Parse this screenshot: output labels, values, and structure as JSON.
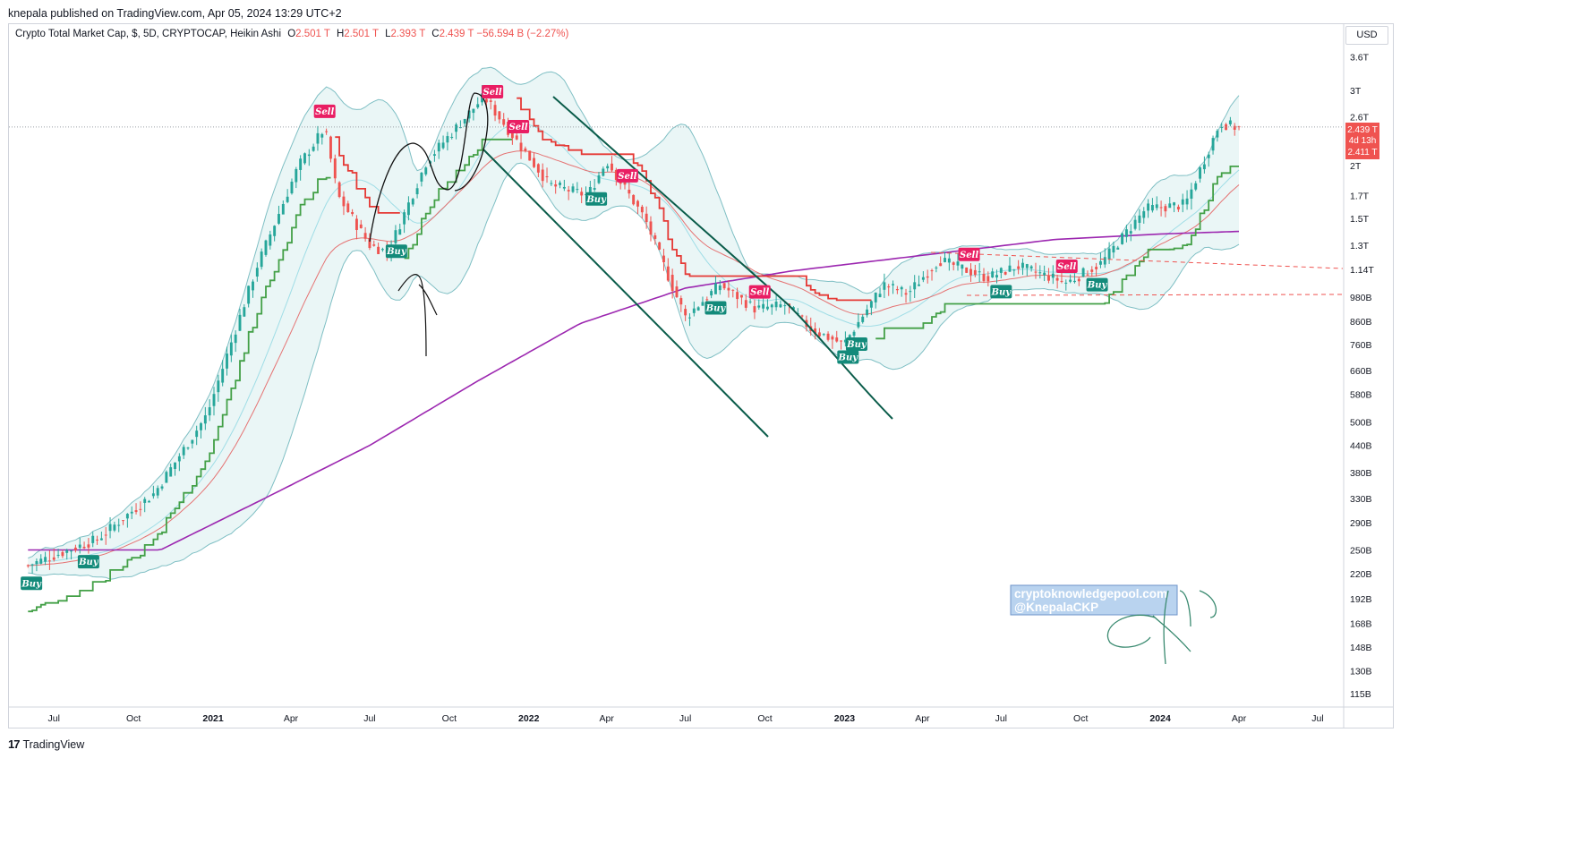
{
  "header": {
    "published_by": "knepala published on TradingView.com, Apr 05, 2024 13:29 UTC+2"
  },
  "legend": {
    "symbol": "Crypto Total Market Cap, $, 5D, CRYPTOCAP, Heikin Ashi",
    "open_key": "O",
    "open": "2.501 T",
    "high_key": "H",
    "high": "2.501 T",
    "low_key": "L",
    "low": "2.393 T",
    "close_key": "C",
    "close": "2.439 T",
    "change": "−56.594 B (−2.27%)"
  },
  "price_axis": {
    "currency": "USD",
    "current_price": "2.439 T",
    "countdown": "4d 13h",
    "prev_close": "2.411 T"
  },
  "watermark": {
    "line1": "cryptoknowledgepool.com",
    "line2": "@KnepalaCKP",
    "signature": "CKP"
  },
  "footer": {
    "brand": "TradingView"
  },
  "colors": {
    "up": "#26a69a",
    "down": "#ef5350",
    "bb_fill": "#e6f4f4",
    "bb_edge": "#7fbfc4",
    "ma200": "#9c27b0",
    "supertrend_up": "#43a047",
    "supertrend_down": "#e53935",
    "sell_label": "#e91e63",
    "buy_label": "#138a7a",
    "trendline": "#0a5c4a"
  },
  "chart_data": {
    "type": "candlestick",
    "title": "Crypto Total Market Cap, $, 5D, CRYPTOCAP, Heikin Ashi",
    "y_scale": "log",
    "y_unit": "USD",
    "y_ticks": [
      "3.6T",
      "3T",
      "2.6T",
      "2T",
      "1.7T",
      "1.5T",
      "1.3T",
      "1.14T",
      "980B",
      "860B",
      "760B",
      "660B",
      "580B",
      "500B",
      "440B",
      "380B",
      "330B",
      "290B",
      "250B",
      "220B",
      "192B",
      "168B",
      "148B",
      "130B",
      "115B"
    ],
    "x_ticks": [
      {
        "label": "Jul",
        "bold": false
      },
      {
        "label": "Oct",
        "bold": false
      },
      {
        "label": "2021",
        "bold": true
      },
      {
        "label": "Apr",
        "bold": false
      },
      {
        "label": "Jul",
        "bold": false
      },
      {
        "label": "Oct",
        "bold": false
      },
      {
        "label": "2022",
        "bold": true
      },
      {
        "label": "Apr",
        "bold": false
      },
      {
        "label": "Jul",
        "bold": false
      },
      {
        "label": "Oct",
        "bold": false
      },
      {
        "label": "2023",
        "bold": true
      },
      {
        "label": "Apr",
        "bold": false
      },
      {
        "label": "Jul",
        "bold": false
      },
      {
        "label": "Oct",
        "bold": false
      },
      {
        "label": "2024",
        "bold": true
      },
      {
        "label": "Apr",
        "bold": false
      },
      {
        "label": "Jul",
        "bold": false
      }
    ],
    "price_path": [
      [
        "2020-06-01",
        230
      ],
      [
        "2020-08-20",
        265
      ],
      [
        "2020-10-25",
        340
      ],
      [
        "2020-12-25",
        520
      ],
      [
        "2021-02-20",
        1150
      ],
      [
        "2021-04-10",
        2000
      ],
      [
        "2021-05-10",
        2450
      ],
      [
        "2021-05-25",
        1700
      ],
      [
        "2021-07-01",
        1300
      ],
      [
        "2021-07-22",
        1250
      ],
      [
        "2021-09-05",
        2050
      ],
      [
        "2021-10-20",
        2600
      ],
      [
        "2021-11-10",
        2900
      ],
      [
        "2021-12-10",
        2400
      ],
      [
        "2022-01-25",
        1800
      ],
      [
        "2022-03-10",
        1700
      ],
      [
        "2022-04-01",
        2050
      ],
      [
        "2022-05-15",
        1500
      ],
      [
        "2022-06-15",
        1050
      ],
      [
        "2022-07-01",
        880
      ],
      [
        "2022-08-10",
        1050
      ],
      [
        "2022-09-20",
        920
      ],
      [
        "2022-10-25",
        940
      ],
      [
        "2022-11-25",
        820
      ],
      [
        "2022-12-31",
        760
      ],
      [
        "2023-02-15",
        1050
      ],
      [
        "2023-03-15",
        1000
      ],
      [
        "2023-04-20",
        1200
      ],
      [
        "2023-06-15",
        1090
      ],
      [
        "2023-07-20",
        1160
      ],
      [
        "2023-09-15",
        1060
      ],
      [
        "2023-10-25",
        1180
      ],
      [
        "2023-12-15",
        1580
      ],
      [
        "2024-01-30",
        1620
      ],
      [
        "2024-03-10",
        2520
      ],
      [
        "2024-04-03",
        2439
      ]
    ],
    "ma200_path": [
      [
        "2020-06-01",
        250
      ],
      [
        "2020-11-01",
        250
      ],
      [
        "2021-03-01",
        330
      ],
      [
        "2021-07-01",
        440
      ],
      [
        "2021-11-01",
        620
      ],
      [
        "2022-03-01",
        850
      ],
      [
        "2022-07-01",
        1030
      ],
      [
        "2022-11-01",
        1130
      ],
      [
        "2023-04-01",
        1230
      ],
      [
        "2023-09-01",
        1340
      ],
      [
        "2024-01-01",
        1380
      ],
      [
        "2024-04-03",
        1400
      ]
    ],
    "signals": [
      {
        "label": "Buy",
        "date": "2020-06-05",
        "kind": "buy"
      },
      {
        "label": "Buy",
        "date": "2020-08-10",
        "kind": "buy"
      },
      {
        "label": "Sell",
        "date": "2021-05-10",
        "kind": "sell"
      },
      {
        "label": "Buy",
        "date": "2021-08-01",
        "kind": "buy"
      },
      {
        "label": "Sell",
        "date": "2021-11-20",
        "kind": "sell"
      },
      {
        "label": "Sell",
        "date": "2021-12-20",
        "kind": "sell"
      },
      {
        "label": "Buy",
        "date": "2022-03-20",
        "kind": "buy"
      },
      {
        "label": "Sell",
        "date": "2022-04-25",
        "kind": "sell"
      },
      {
        "label": "Buy",
        "date": "2022-08-05",
        "kind": "buy"
      },
      {
        "label": "Sell",
        "date": "2022-09-25",
        "kind": "sell"
      },
      {
        "label": "Buy",
        "date": "2023-01-05",
        "kind": "buy"
      },
      {
        "label": "Buy",
        "date": "2023-01-15",
        "kind": "buy"
      },
      {
        "label": "Sell",
        "date": "2023-05-25",
        "kind": "sell"
      },
      {
        "label": "Buy",
        "date": "2023-07-01",
        "kind": "buy"
      },
      {
        "label": "Sell",
        "date": "2023-09-15",
        "kind": "sell"
      },
      {
        "label": "Buy",
        "date": "2023-10-20",
        "kind": "buy"
      }
    ]
  }
}
